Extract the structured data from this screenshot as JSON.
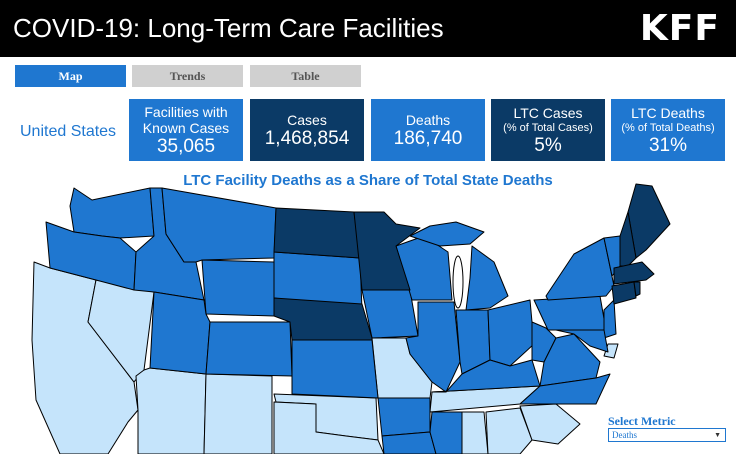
{
  "header": {
    "title": "COVID-19: Long-Term Care Facilities",
    "logo": "KFF"
  },
  "tabs": [
    {
      "label": "Map",
      "active": true
    },
    {
      "label": "Trends",
      "active": false
    },
    {
      "label": "Table",
      "active": false
    }
  ],
  "region": "United States",
  "stats": {
    "facilities": {
      "label_line1": "Facilities with",
      "label_line2": "Known Cases",
      "value": "35,065"
    },
    "cases": {
      "label": "Cases",
      "value": "1,468,854"
    },
    "deaths": {
      "label": "Deaths",
      "value": "186,740"
    },
    "ltc_cases": {
      "label": "LTC Cases",
      "sublabel": "(% of Total Cases)",
      "value": "5%"
    },
    "ltc_deaths": {
      "label": "LTC Deaths",
      "sublabel": "(% of Total Deaths)",
      "value": "31%"
    }
  },
  "map": {
    "title": "LTC Facility Deaths as a Share of Total State Deaths",
    "colors": {
      "dark": "#0b3a66",
      "mid": "#1f77d0",
      "light": "#c5e4fb"
    }
  },
  "select_metric": {
    "label": "Select Metric",
    "value": "Deaths",
    "icon": "chevron-down-icon"
  }
}
